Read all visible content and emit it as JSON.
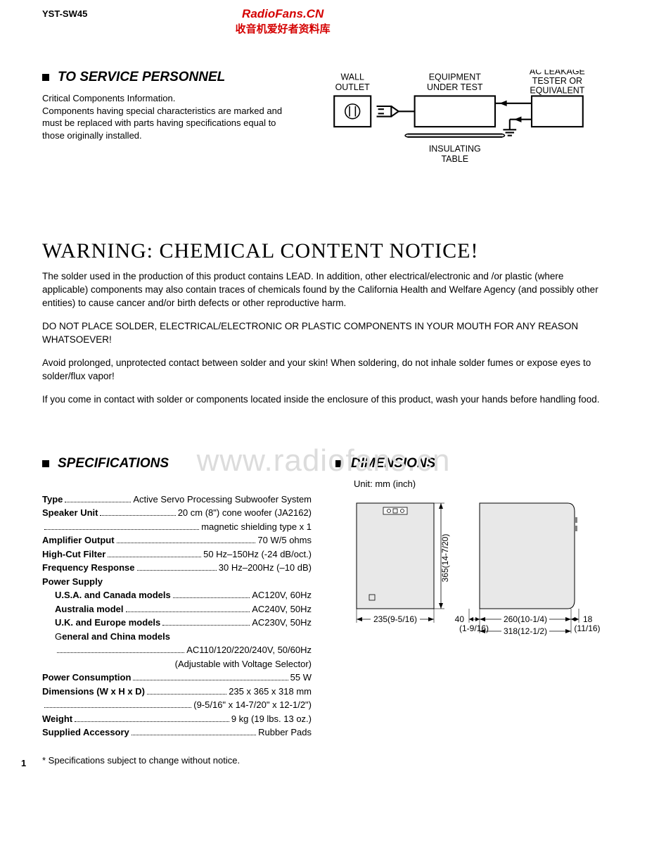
{
  "header": {
    "model": "YST-SW45",
    "brand_en": "RadioFans.CN",
    "brand_cn": "收音机爱好者资料库"
  },
  "service": {
    "title": "TO SERVICE PERSONNEL",
    "p1": "Critical Components Information.",
    "p2": "Components having special characteristics are marked and must be replaced with parts having specifications equal to those originally installed."
  },
  "diagram": {
    "wall": "WALL OUTLET",
    "eut": "EQUIPMENT UNDER TEST",
    "tester": "AC LEAKAGE TESTER OR EQUIVALENT",
    "table": "INSULATING TABLE"
  },
  "warning": {
    "title": "WARNING: CHEMICAL CONTENT NOTICE!",
    "p1": "The solder used in the production of this product contains LEAD.  In addition, other electrical/electronic and /or plastic (where applicable) components may also contain traces of chemicals found by the California Health and Welfare Agency (and possibly other entities) to cause cancer and/or birth defects or other reproductive harm.",
    "p2": "DO NOT PLACE SOLDER, ELECTRICAL/ELECTRONIC OR PLASTIC COMPONENTS IN YOUR MOUTH FOR ANY REASON WHATSOEVER!",
    "p3": "Avoid prolonged, unprotected contact between solder and your skin!  When soldering, do not inhale solder fumes or expose eyes to solder/flux vapor!",
    "p4": "If you come in contact with solder or components located inside the enclosure of this product, wash your hands before handling food."
  },
  "watermark": "www.radiofans.cn",
  "spec": {
    "title": "SPECIFICATIONS",
    "rows": [
      {
        "label": "Type",
        "value": "Active Servo Processing Subwoofer System",
        "bold": true
      },
      {
        "label": "Speaker Unit",
        "value": "20 cm (8\") cone woofer (JA2162)",
        "bold": true
      },
      {
        "label": "",
        "value": "magnetic shielding type x 1",
        "bold": false,
        "cont": true
      },
      {
        "label": "Amplifier Output",
        "value": "70 W/5 ohms",
        "bold": true
      },
      {
        "label": "High-Cut Filter",
        "value": "50 Hz–150Hz (-24 dB/oct.)",
        "bold": true
      },
      {
        "label": "Frequency Response",
        "value": "30 Hz–200Hz (–10 dB)",
        "bold": true
      },
      {
        "label": "Power Supply",
        "value": "",
        "bold": true,
        "noval": true
      },
      {
        "label": "U.S.A. and Canada models",
        "value": "AC120V, 60Hz",
        "bold": true,
        "indent": true
      },
      {
        "label": "Australia model",
        "value": "AC240V, 50Hz",
        "bold": true,
        "indent": true
      },
      {
        "label": "U.K. and Europe models",
        "value": "AC230V, 50Hz",
        "bold": true,
        "indent": true
      },
      {
        "label": "General and China models",
        "value": "",
        "bold": true,
        "indent": true,
        "noval": true,
        "mixed": true
      },
      {
        "label": "",
        "value": "AC110/120/220/240V, 50/60Hz",
        "bold": false,
        "indent": true,
        "cont": true
      },
      {
        "label": "",
        "value": "(Adjustable with Voltage Selector)",
        "bold": false,
        "indent": true,
        "cont": true,
        "nodots": true
      },
      {
        "label": "Power Consumption",
        "value": "55 W",
        "bold": true
      },
      {
        "label": "Dimensions (W x H x D)",
        "value": "235 x 365 x 318 mm",
        "bold": true
      },
      {
        "label": "",
        "value": "(9-5/16\" x 14-7/20\" x 12-1/2\")",
        "bold": false,
        "cont": true
      },
      {
        "label": "Weight",
        "value": "9 kg (19 lbs. 13 oz.)",
        "bold": true
      },
      {
        "label": "Supplied Accessory",
        "value": "Rubber Pads",
        "bold": true
      }
    ],
    "note": "* Specifications subject to change without notice."
  },
  "dim": {
    "title": "DIMENSIONS",
    "unit": "Unit: mm (inch)",
    "w": "235(9-5/16)",
    "h": "365(14-7/20)",
    "d1": "40",
    "d1b": "(1-9/16)",
    "d2": "260(10-1/4)",
    "d3": "18",
    "d3b": "(11/16)",
    "dtotal": "318(12-1/2)"
  },
  "page": "1"
}
